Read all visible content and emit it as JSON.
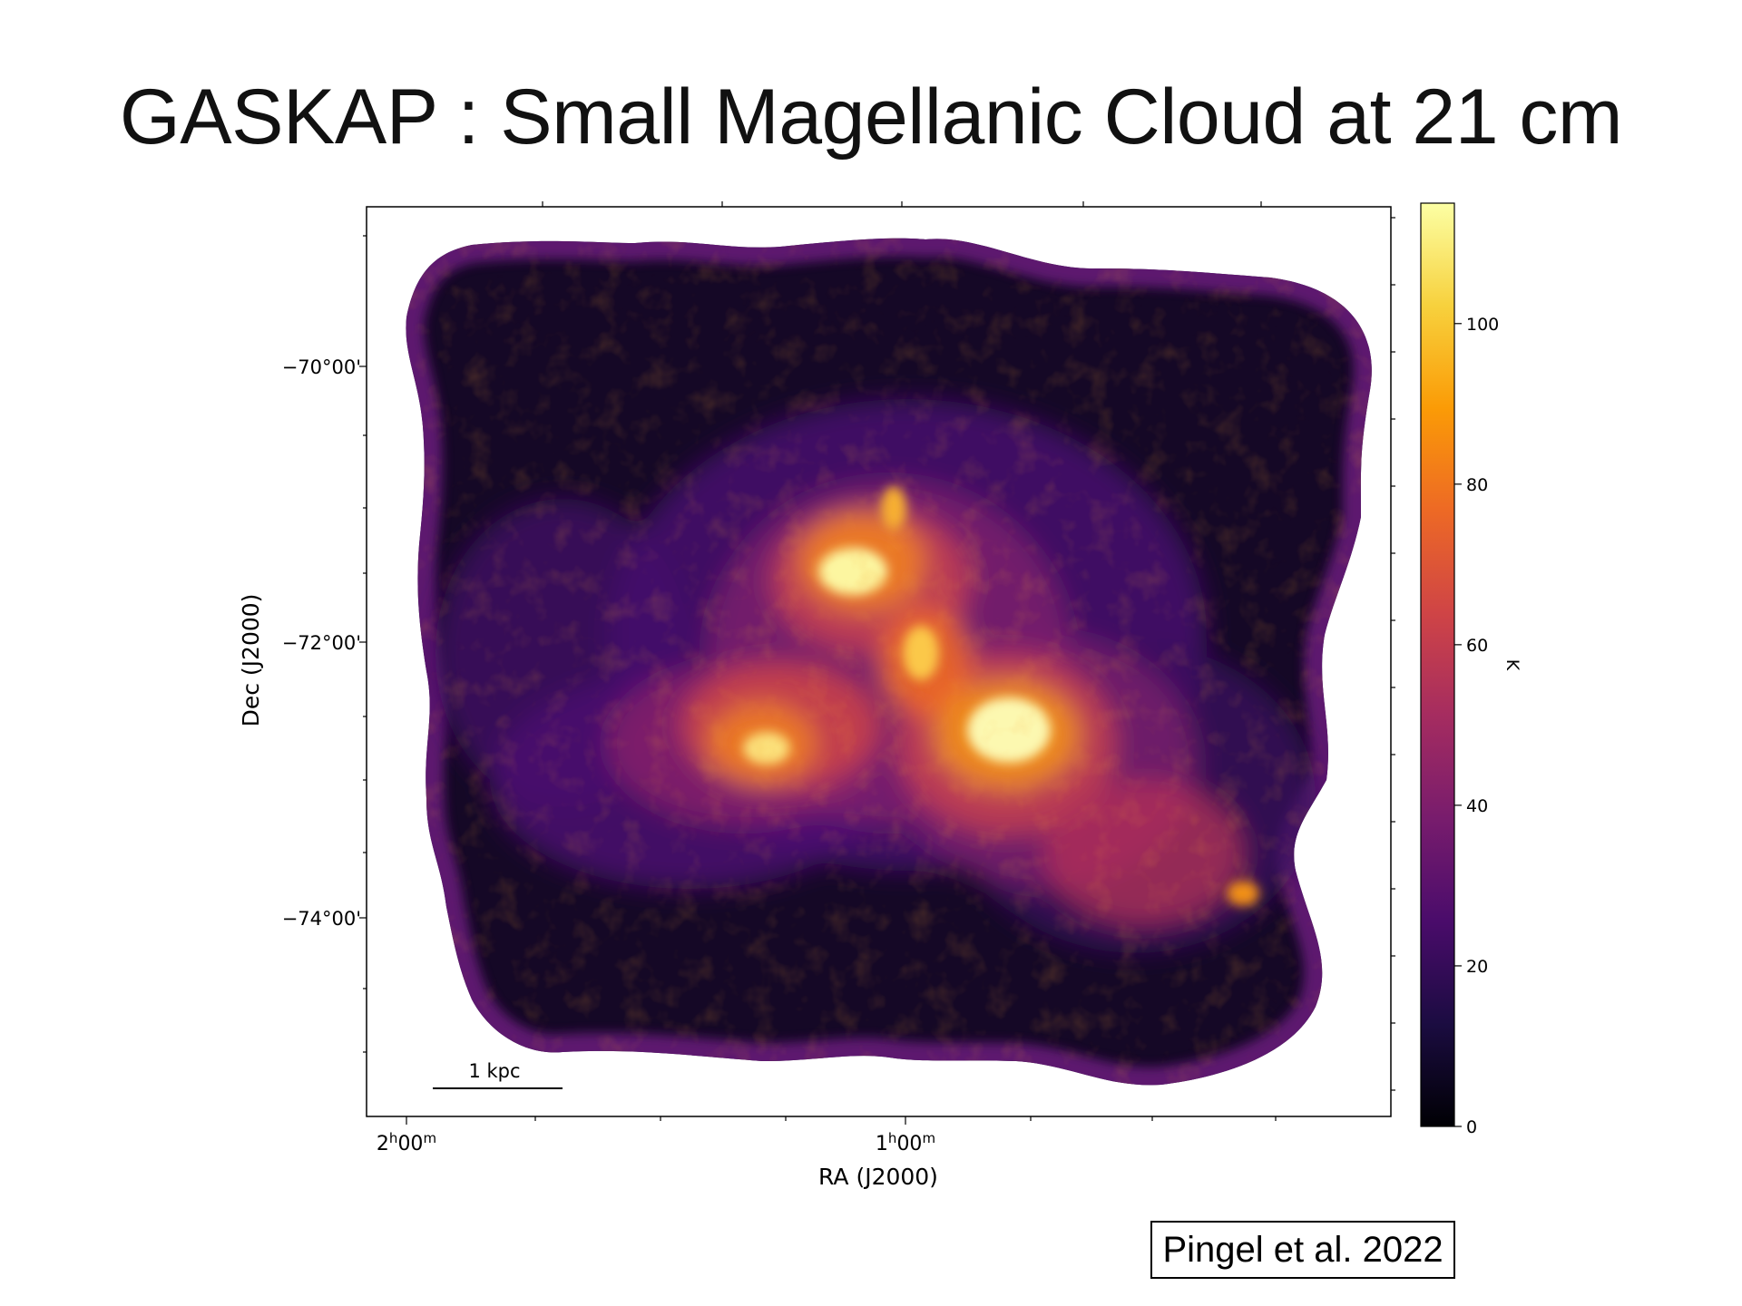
{
  "title": "GASKAP : Small Magellanic Cloud at 21 cm",
  "citation": "Pingel et al. 2022",
  "axes": {
    "xlabel": "RA (J2000)",
    "ylabel": "Dec (J2000)",
    "xticks": [
      {
        "h": "2",
        "m": "00"
      },
      {
        "h": "1",
        "m": "00"
      }
    ],
    "yticks": [
      "−70°00'",
      "−72°00'",
      "−74°00'"
    ]
  },
  "scalebar": "1 kpc",
  "colorbar": {
    "label": "K",
    "ticks": [
      "0",
      "20",
      "40",
      "60",
      "80",
      "100"
    ],
    "tick_values": [
      0,
      20,
      40,
      60,
      80,
      100
    ],
    "max": 115,
    "colormap": "inferno",
    "stops": [
      "#000004",
      "#1b0c41",
      "#4a0c6b",
      "#781c6d",
      "#a52c60",
      "#cf4446",
      "#ed6925",
      "#fb9b06",
      "#f7d13d",
      "#fcffa4"
    ]
  }
}
